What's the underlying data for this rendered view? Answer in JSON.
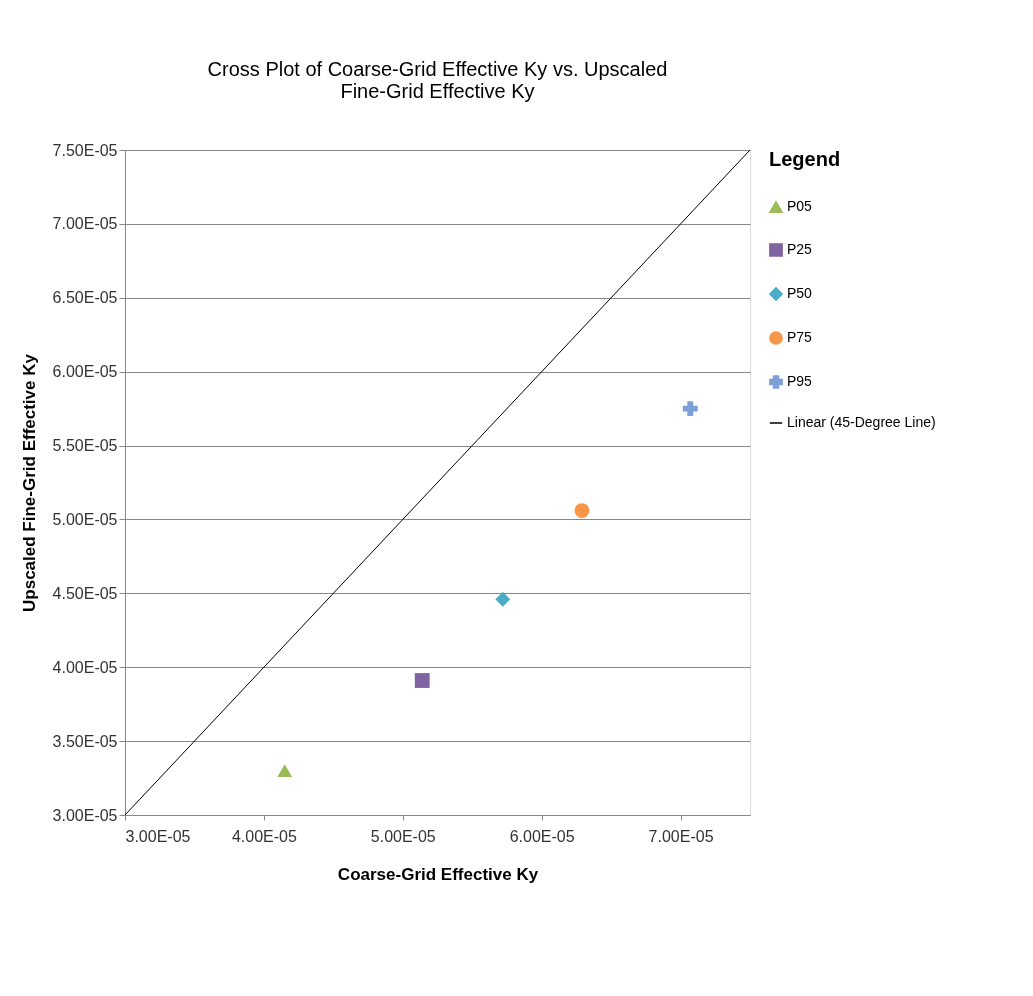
{
  "chart_data": {
    "type": "scatter",
    "title": "Cross Plot of Coarse-Grid Effective Ky vs. Upscaled Fine-Grid Effective Ky",
    "xlabel": "Coarse-Grid Effective Ky",
    "ylabel": "Upscaled Fine-Grid Effective Ky",
    "legend_title": "Legend",
    "series": [
      {
        "name": "P05",
        "color": "#9bbb59",
        "marker": "triangle",
        "x": [
          4.15e-05
        ],
        "values": [
          3.3e-05
        ]
      },
      {
        "name": "P25",
        "color": "#8064a2",
        "marker": "square",
        "x": [
          5.14e-05
        ],
        "values": [
          3.91e-05
        ]
      },
      {
        "name": "P50",
        "color": "#4bacc6",
        "marker": "diamond",
        "x": [
          5.72e-05
        ],
        "values": [
          4.46e-05
        ]
      },
      {
        "name": "P75",
        "color": "#f79646",
        "marker": "circle",
        "x": [
          6.29e-05
        ],
        "values": [
          5.06e-05
        ]
      },
      {
        "name": "P95",
        "color": "#7f9fd8",
        "marker": "cross",
        "x": [
          7.07e-05
        ],
        "values": [
          5.75e-05
        ]
      },
      {
        "name": "Linear (45-Degree Line)",
        "type": "line",
        "color": "#000000",
        "marker": "none",
        "line_style": "solid",
        "x": [
          3e-05,
          7.5e-05
        ],
        "values": [
          3e-05,
          7.5e-05
        ]
      }
    ],
    "xlim": [
      3e-05,
      7.5e-05
    ],
    "xticks": [
      {
        "value": 3e-05,
        "label": "3.00E-05"
      },
      {
        "value": 4e-05,
        "label": "4.00E-05"
      },
      {
        "value": 5e-05,
        "label": "5.00E-05"
      },
      {
        "value": 6e-05,
        "label": "6.00E-05"
      },
      {
        "value": 7e-05,
        "label": "7.00E-05"
      }
    ],
    "ylim": [
      3e-05,
      7.5e-05
    ],
    "yticks": [
      {
        "value": 3e-05,
        "label": "3.00E-05"
      },
      {
        "value": 3.5e-05,
        "label": "3.50E-05"
      },
      {
        "value": 4e-05,
        "label": "4.00E-05"
      },
      {
        "value": 4.5e-05,
        "label": "4.50E-05"
      },
      {
        "value": 5e-05,
        "label": "5.00E-05"
      },
      {
        "value": 5.5e-05,
        "label": "5.50E-05"
      },
      {
        "value": 6e-05,
        "label": "6.00E-05"
      },
      {
        "value": 6.5e-05,
        "label": "6.50E-05"
      },
      {
        "value": 7e-05,
        "label": "7.00E-05"
      },
      {
        "value": 7.5e-05,
        "label": "7.50E-05"
      }
    ],
    "grid": "y",
    "legend": "right"
  }
}
